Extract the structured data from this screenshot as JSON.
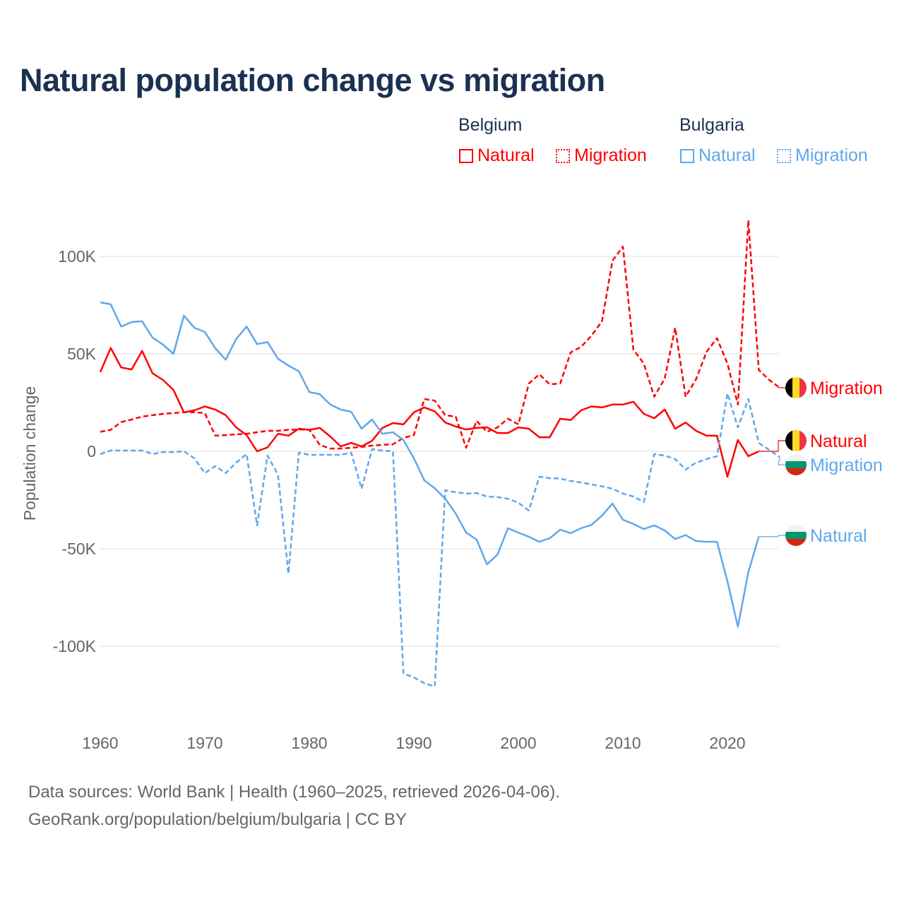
{
  "title": "Natural population change vs migration",
  "legend": {
    "groups": [
      {
        "name": "Belgium",
        "color": "#ff0000",
        "items": [
          "Natural",
          "Migration"
        ]
      },
      {
        "name": "Bulgaria",
        "color": "#5fa8ec",
        "items": [
          "Natural",
          "Migration"
        ]
      }
    ]
  },
  "footer": {
    "line1": "Data sources: World Bank | Health (1960–2025, retrieved 2026-04-06).",
    "line2": "GeoRank.org/population/belgium/bulgaria | CC BY"
  },
  "chart_data": {
    "type": "line",
    "title": "Natural population change vs migration",
    "xlabel": "",
    "ylabel": "Population change",
    "xlim": [
      1960,
      2025
    ],
    "ylim": [
      -125000,
      120000
    ],
    "x_ticks": [
      1960,
      1970,
      1980,
      1990,
      2000,
      2010,
      2020
    ],
    "x_tick_labels": [
      "1960",
      "1970",
      "1980",
      "1990",
      "2000",
      "2010",
      "2020"
    ],
    "y_ticks": [
      100000,
      50000,
      0,
      -50000,
      -100000
    ],
    "y_tick_labels": [
      "100K",
      "50K",
      "0",
      "-50K",
      "-100K"
    ],
    "grid": true,
    "legend_placement": "top-right",
    "start_year": 1960,
    "series": [
      {
        "name": "Belgium Natural",
        "country": "Belgium",
        "label": "Natural",
        "color": "#ff0000",
        "style": "solid",
        "values": [
          40600,
          53000,
          43000,
          42000,
          51500,
          40000,
          36600,
          31500,
          20000,
          21000,
          23000,
          21400,
          18500,
          12300,
          8300,
          0,
          2000,
          9000,
          8000,
          11600,
          11000,
          12000,
          7600,
          2500,
          4300,
          2500,
          5400,
          12000,
          14500,
          13800,
          20000,
          22500,
          20500,
          14800,
          12700,
          11200,
          12000,
          12300,
          9400,
          9400,
          12300,
          11600,
          7200,
          7200,
          16700,
          16000,
          21000,
          23000,
          22500,
          24000,
          24000,
          25400,
          19200,
          17000,
          21400,
          11600,
          14800,
          10500,
          8000,
          8000,
          -13000,
          5800,
          -2500,
          0
        ]
      },
      {
        "name": "Belgium Migration",
        "country": "Belgium",
        "label": "Migration",
        "color": "#ff0000",
        "style": "dashed",
        "values": [
          10000,
          11000,
          15000,
          16300,
          17800,
          18500,
          19200,
          19600,
          20000,
          20000,
          19600,
          8000,
          8300,
          8700,
          9000,
          9800,
          10500,
          10500,
          11000,
          11200,
          11000,
          3300,
          1400,
          1400,
          1800,
          2200,
          2900,
          3300,
          3600,
          6900,
          8300,
          26800,
          26000,
          18500,
          17800,
          1800,
          15600,
          10000,
          12300,
          16700,
          13800,
          34800,
          39500,
          34400,
          34800,
          50700,
          53600,
          59400,
          66700,
          97800,
          105000,
          52200,
          45000,
          28000,
          37300,
          63400,
          28000,
          37000,
          51000,
          58000,
          45000,
          24000,
          118500,
          41700,
          36600,
          32600
        ]
      },
      {
        "name": "Bulgaria Natural",
        "country": "Bulgaria",
        "label": "Natural",
        "color": "#5fa8ec",
        "style": "solid",
        "values": [
          76400,
          75400,
          64000,
          66300,
          66700,
          58300,
          54700,
          50000,
          69600,
          63400,
          61200,
          52900,
          47000,
          57600,
          64000,
          55000,
          56000,
          47500,
          44000,
          41000,
          30400,
          29300,
          24000,
          21400,
          20300,
          11600,
          16300,
          9000,
          9800,
          5800,
          -3600,
          -14900,
          -19000,
          -24300,
          -31900,
          -41700,
          -45300,
          -58000,
          -53000,
          -39500,
          -41700,
          -43800,
          -46400,
          -44600,
          -40200,
          -42000,
          -39500,
          -37700,
          -33000,
          -26800,
          -35100,
          -37300,
          -39900,
          -38000,
          -40600,
          -45000,
          -43000,
          -46000,
          -46400,
          -46400,
          -66700,
          -90000,
          -62000,
          -43800
        ]
      },
      {
        "name": "Bulgaria Migration",
        "country": "Bulgaria",
        "label": "Migration",
        "color": "#5fa8ec",
        "style": "dashed",
        "values": [
          -1400,
          400,
          400,
          400,
          400,
          -1400,
          -400,
          -400,
          0,
          -3600,
          -11200,
          -7600,
          -11200,
          -5800,
          -1400,
          -38000,
          -2200,
          -12000,
          -62700,
          -700,
          -1800,
          -1800,
          -1800,
          -1800,
          -700,
          -19200,
          1100,
          400,
          0,
          -114000,
          -116000,
          -119000,
          -120600,
          -20000,
          -21000,
          -21700,
          -21400,
          -23200,
          -23500,
          -24300,
          -26400,
          -30400,
          -13000,
          -13800,
          -14000,
          -15200,
          -16000,
          -17000,
          -18000,
          -19200,
          -21700,
          -23200,
          -26000,
          -1400,
          -2200,
          -4000,
          -9400,
          -5800,
          -4000,
          -2500,
          29700,
          12300,
          26800,
          4300,
          700,
          -2900
        ]
      }
    ]
  }
}
